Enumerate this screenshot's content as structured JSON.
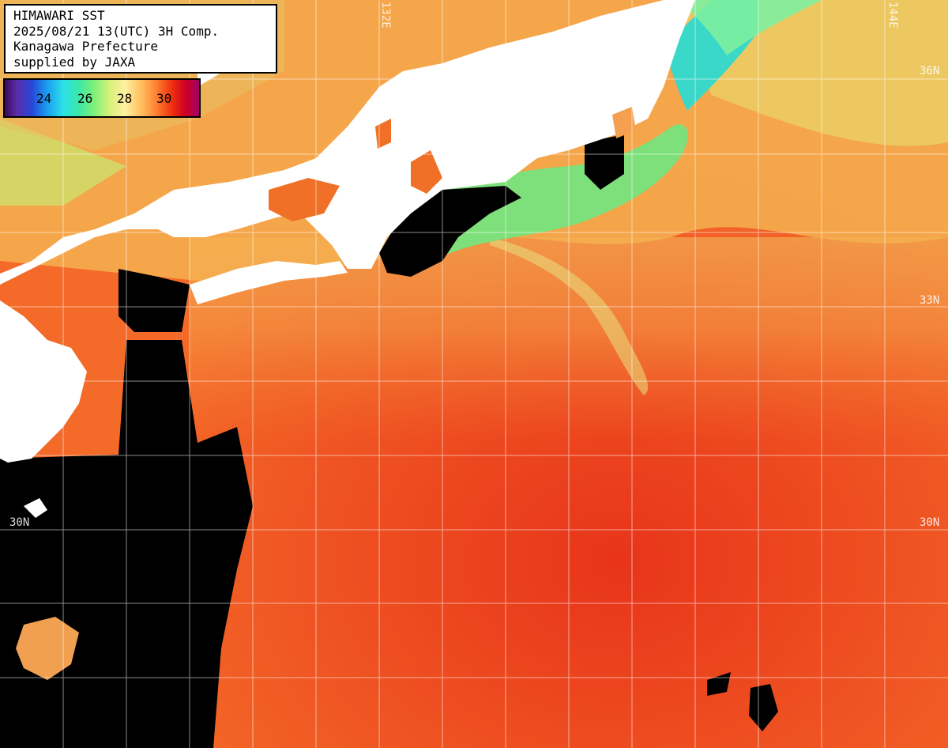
{
  "title": {
    "line1": "HIMAWARI SST",
    "line2": "2025/08/21 13(UTC) 3H Comp.",
    "line3": "Kanagawa Prefecture",
    "line4": "supplied by JAXA"
  },
  "legend": {
    "ticks": [
      "24",
      "26",
      "28",
      "30"
    ],
    "unit": ""
  },
  "graticule": {
    "lat_labels": [
      "36N",
      "33N",
      "30N",
      "30N"
    ],
    "lon_labels": [
      "132E",
      "144E"
    ]
  },
  "colors": {
    "land": "#ffffff",
    "no_data": "#000000",
    "grid": "#ffffff",
    "warm_sea": "#f05a1e",
    "coastal_cool": "#7ee07a"
  }
}
